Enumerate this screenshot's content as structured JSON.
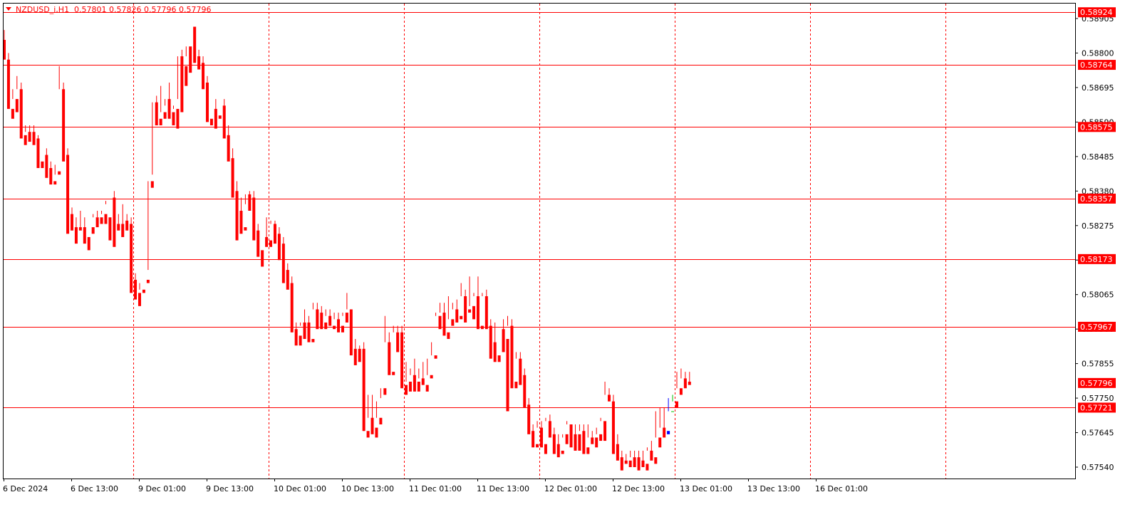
{
  "header": {
    "symbol_label": "NZDUSD_i,H1",
    "ohlc_values": "0.57801 0.57826 0.57796 0.57796"
  },
  "colors": {
    "background": "#ffffff",
    "frame": "#000000",
    "bull": "#0000ff",
    "bear": "#ff0000",
    "doji": "#00c000",
    "level_line": "#ff0000",
    "separator": "#ff0000",
    "label_bg": "#ff0000",
    "label_text": "#ffffff",
    "axis_text": "#000000"
  },
  "chart_data": {
    "type": "candlestick",
    "title": "NZDUSD_i,H1",
    "ylim": [
      0.5749,
      0.5898
    ],
    "y_ticks": [
      "0.58905",
      "0.58800",
      "0.58695",
      "0.58590",
      "0.58485",
      "0.58380",
      "0.58275",
      "0.58170",
      "0.58065",
      "0.57960",
      "0.57855",
      "0.57750",
      "0.57645",
      "0.57540"
    ],
    "x_ticks": [
      "6 Dec 2024",
      "6 Dec 13:00",
      "9 Dec 01:00",
      "9 Dec 13:00",
      "10 Dec 01:00",
      "10 Dec 13:00",
      "11 Dec 01:00",
      "11 Dec 13:00",
      "12 Dec 01:00",
      "12 Dec 13:00",
      "13 Dec 01:00",
      "13 Dec 13:00",
      "16 Dec 01:00"
    ],
    "period_separators": [
      "9 Dec 01:00",
      "10 Dec 01:00",
      "11 Dec 01:00",
      "12 Dec 01:00",
      "13 Dec 01:00",
      "16 Dec 01:00"
    ],
    "horizontal_levels": [
      "0.58924",
      "0.58764",
      "0.58575",
      "0.58357",
      "0.58173",
      "0.57967",
      "0.57721"
    ],
    "current_price": "0.57796",
    "candles": [
      [
        0.5884,
        0.5887,
        0.5879,
        0.5878
      ],
      [
        0.5878,
        0.588,
        0.5871,
        0.5863
      ],
      [
        0.5863,
        0.5869,
        0.5866,
        0.586
      ],
      [
        0.5866,
        0.5873,
        0.5869,
        0.5862
      ],
      [
        0.5869,
        0.5871,
        0.5855,
        0.5854
      ],
      [
        0.5855,
        0.5858,
        0.5856,
        0.5852
      ],
      [
        0.5856,
        0.5858,
        0.5855,
        0.5853
      ],
      [
        0.5856,
        0.5858,
        0.5854,
        0.5852
      ],
      [
        0.5854,
        0.5855,
        0.5847,
        0.5845
      ],
      [
        0.5847,
        0.5849,
        0.5849,
        0.5845
      ],
      [
        0.5849,
        0.5851,
        0.5845,
        0.5842
      ],
      [
        0.5845,
        0.5847,
        0.5841,
        0.584
      ],
      [
        0.5841,
        0.5843,
        0.5846,
        0.584
      ],
      [
        0.5844,
        0.5876,
        0.5869,
        0.5843
      ],
      [
        0.5869,
        0.5871,
        0.5849,
        0.5847
      ],
      [
        0.5849,
        0.5851,
        0.5831,
        0.5825
      ],
      [
        0.5831,
        0.5833,
        0.5827,
        0.5826
      ],
      [
        0.5827,
        0.583,
        0.5824,
        0.5822
      ],
      [
        0.5827,
        0.5832,
        0.5827,
        0.5826
      ],
      [
        0.5827,
        0.583,
        0.5824,
        0.5822
      ],
      [
        0.5824,
        0.5827,
        0.5827,
        0.582
      ],
      [
        0.5827,
        0.5831,
        0.583,
        0.5825
      ],
      [
        0.583,
        0.5832,
        0.583,
        0.5827
      ],
      [
        0.583,
        0.5832,
        0.5831,
        0.5828
      ],
      [
        0.5831,
        0.5834,
        0.5835,
        0.5828
      ],
      [
        0.583,
        0.5836,
        0.5836,
        0.5823
      ],
      [
        0.5836,
        0.5838,
        0.5828,
        0.5821
      ],
      [
        0.5828,
        0.5831,
        0.5828,
        0.5826
      ],
      [
        0.5828,
        0.5834,
        0.5828,
        0.5824
      ],
      [
        0.5829,
        0.5831,
        0.5828,
        0.5826
      ],
      [
        0.5828,
        0.583,
        0.5811,
        0.5807
      ],
      [
        0.5811,
        0.5813,
        0.5807,
        0.5805
      ],
      [
        0.5807,
        0.581,
        0.5808,
        0.5803
      ],
      [
        0.5808,
        0.5811,
        0.5811,
        0.5807
      ],
      [
        0.5811,
        0.5814,
        0.5841,
        0.581
      ],
      [
        0.5841,
        0.5843,
        0.5865,
        0.5839
      ],
      [
        0.5865,
        0.5867,
        0.586,
        0.5858
      ],
      [
        0.586,
        0.587,
        0.5862,
        0.5858
      ],
      [
        0.5862,
        0.5864,
        0.5866,
        0.586
      ],
      [
        0.5866,
        0.5871,
        0.5862,
        0.586
      ],
      [
        0.5862,
        0.5864,
        0.5863,
        0.5858
      ],
      [
        0.5863,
        0.5866,
        0.5879,
        0.5857
      ],
      [
        0.5879,
        0.5881,
        0.5876,
        0.5862
      ],
      [
        0.5876,
        0.5879,
        0.5882,
        0.587
      ],
      [
        0.5882,
        0.5888,
        0.5888,
        0.5874
      ],
      [
        0.5888,
        0.5887,
        0.5879,
        0.5877
      ],
      [
        0.5879,
        0.5881,
        0.5877,
        0.5875
      ],
      [
        0.5877,
        0.5879,
        0.5871,
        0.5869
      ],
      [
        0.5871,
        0.5873,
        0.586,
        0.5859
      ],
      [
        0.586,
        0.5863,
        0.5863,
        0.5858
      ],
      [
        0.5863,
        0.5866,
        0.5861,
        0.5857
      ],
      [
        0.5861,
        0.5864,
        0.5864,
        0.586
      ],
      [
        0.5864,
        0.5866,
        0.5855,
        0.5854
      ],
      [
        0.5855,
        0.5858,
        0.5848,
        0.5847
      ],
      [
        0.5848,
        0.5851,
        0.5838,
        0.5836
      ],
      [
        0.5838,
        0.5841,
        0.5832,
        0.5823
      ],
      [
        0.5832,
        0.5836,
        0.5827,
        0.5825
      ],
      [
        0.5827,
        0.5834,
        0.5837,
        0.5826
      ],
      [
        0.5837,
        0.5838,
        0.5836,
        0.5832
      ],
      [
        0.5836,
        0.5838,
        0.5826,
        0.5823
      ],
      [
        0.5826,
        0.5828,
        0.582,
        0.5818
      ],
      [
        0.582,
        0.5824,
        0.5824,
        0.5815
      ],
      [
        0.5824,
        0.583,
        0.5823,
        0.5821
      ],
      [
        0.5823,
        0.5829,
        0.5828,
        0.5821
      ],
      [
        0.5828,
        0.5829,
        0.5825,
        0.5822
      ],
      [
        0.5825,
        0.5827,
        0.5822,
        0.5817
      ],
      [
        0.5822,
        0.5824,
        0.5814,
        0.581
      ],
      [
        0.5814,
        0.5816,
        0.581,
        0.5808
      ],
      [
        0.581,
        0.5812,
        0.5796,
        0.5795
      ],
      [
        0.5796,
        0.5798,
        0.5794,
        0.5791
      ],
      [
        0.5794,
        0.5797,
        0.5798,
        0.5791
      ],
      [
        0.5798,
        0.5802,
        0.5798,
        0.5793
      ],
      [
        0.5798,
        0.58,
        0.5793,
        0.5792
      ],
      [
        0.5793,
        0.5804,
        0.5802,
        0.5792
      ],
      [
        0.5802,
        0.5804,
        0.5801,
        0.5796
      ],
      [
        0.5801,
        0.5803,
        0.5798,
        0.5796
      ],
      [
        0.5798,
        0.5802,
        0.58,
        0.5796
      ],
      [
        0.58,
        0.5802,
        0.5797,
        0.5797
      ],
      [
        0.5797,
        0.5801,
        0.5799,
        0.5796
      ],
      [
        0.5799,
        0.5801,
        0.5797,
        0.5795
      ],
      [
        0.5797,
        0.58,
        0.5801,
        0.5795
      ],
      [
        0.5801,
        0.5807,
        0.5802,
        0.5798
      ],
      [
        0.5802,
        0.5802,
        0.579,
        0.5788
      ],
      [
        0.579,
        0.5793,
        0.579,
        0.5785
      ],
      [
        0.579,
        0.5791,
        0.579,
        0.5786
      ],
      [
        0.579,
        0.5792,
        0.5765,
        0.5765
      ],
      [
        0.5765,
        0.5776,
        0.5769,
        0.5763
      ],
      [
        0.5769,
        0.5776,
        0.5766,
        0.5764
      ],
      [
        0.5766,
        0.5774,
        0.5769,
        0.5763
      ],
      [
        0.5769,
        0.5775,
        0.5778,
        0.5767
      ],
      [
        0.5778,
        0.58,
        0.5792,
        0.5776
      ],
      [
        0.5792,
        0.5795,
        0.5783,
        0.5782
      ],
      [
        0.5783,
        0.5797,
        0.5795,
        0.5782
      ],
      [
        0.5795,
        0.5797,
        0.5795,
        0.5789
      ],
      [
        0.5795,
        0.5797,
        0.5779,
        0.5778
      ],
      [
        0.5779,
        0.5786,
        0.578,
        0.5776
      ],
      [
        0.578,
        0.5784,
        0.5782,
        0.5777
      ],
      [
        0.5782,
        0.5787,
        0.578,
        0.5777
      ],
      [
        0.578,
        0.5784,
        0.5781,
        0.5777
      ],
      [
        0.5781,
        0.5786,
        0.5779,
        0.5779
      ],
      [
        0.5779,
        0.5787,
        0.5782,
        0.5777
      ],
      [
        0.5782,
        0.5792,
        0.5788,
        0.5781
      ],
      [
        0.5788,
        0.5801,
        0.58,
        0.5787
      ],
      [
        0.58,
        0.5804,
        0.5801,
        0.5796
      ],
      [
        0.5801,
        0.5804,
        0.5795,
        0.5794
      ],
      [
        0.5795,
        0.5806,
        0.5799,
        0.5793
      ],
      [
        0.5799,
        0.5804,
        0.5802,
        0.5797
      ],
      [
        0.5802,
        0.5805,
        0.58,
        0.5798
      ],
      [
        0.58,
        0.581,
        0.5806,
        0.5799
      ],
      [
        0.5806,
        0.5808,
        0.5802,
        0.5798
      ],
      [
        0.5802,
        0.5812,
        0.5803,
        0.5801
      ],
      [
        0.5803,
        0.5807,
        0.5806,
        0.5799
      ],
      [
        0.5806,
        0.5812,
        0.5797,
        0.5796
      ],
      [
        0.5797,
        0.5807,
        0.5806,
        0.5796
      ],
      [
        0.5806,
        0.5808,
        0.5797,
        0.5796
      ],
      [
        0.5797,
        0.5799,
        0.5792,
        0.5787
      ],
      [
        0.5792,
        0.5798,
        0.5788,
        0.5786
      ],
      [
        0.5788,
        0.5796,
        0.5796,
        0.5786
      ],
      [
        0.5796,
        0.5799,
        0.5793,
        0.5789
      ],
      [
        0.5793,
        0.58,
        0.5797,
        0.5771
      ],
      [
        0.5797,
        0.5799,
        0.578,
        0.5778
      ],
      [
        0.578,
        0.5789,
        0.5787,
        0.5778
      ],
      [
        0.5787,
        0.5789,
        0.5782,
        0.5779
      ],
      [
        0.5782,
        0.5784,
        0.5773,
        0.5772
      ],
      [
        0.5773,
        0.5775,
        0.5765,
        0.5764
      ],
      [
        0.5765,
        0.5767,
        0.5761,
        0.576
      ],
      [
        0.5761,
        0.5768,
        0.5766,
        0.576
      ],
      [
        0.5766,
        0.5768,
        0.5761,
        0.576
      ],
      [
        0.5761,
        0.5769,
        0.5768,
        0.5758
      ],
      [
        0.5768,
        0.577,
        0.5764,
        0.5763
      ],
      [
        0.5764,
        0.5766,
        0.5761,
        0.5758
      ],
      [
        0.5761,
        0.5764,
        0.5759,
        0.5757
      ],
      [
        0.5759,
        0.5763,
        0.5764,
        0.5758
      ],
      [
        0.5764,
        0.5768,
        0.5767,
        0.5761
      ],
      [
        0.5767,
        0.5767,
        0.5764,
        0.576
      ],
      [
        0.5764,
        0.5767,
        0.5764,
        0.5759
      ],
      [
        0.5764,
        0.5767,
        0.5765,
        0.5759
      ],
      [
        0.5765,
        0.5767,
        0.576,
        0.5758
      ],
      [
        0.576,
        0.5767,
        0.5763,
        0.5758
      ],
      [
        0.5763,
        0.5765,
        0.5763,
        0.5761
      ],
      [
        0.5763,
        0.5766,
        0.5764,
        0.576
      ],
      [
        0.5764,
        0.5769,
        0.5768,
        0.5762
      ],
      [
        0.5768,
        0.578,
        0.5776,
        0.5762
      ],
      [
        0.5776,
        0.5778,
        0.5774,
        0.5774
      ],
      [
        0.5774,
        0.5776,
        0.5761,
        0.5758
      ],
      [
        0.5761,
        0.5764,
        0.5757,
        0.5756
      ],
      [
        0.5757,
        0.5759,
        0.5756,
        0.5753
      ],
      [
        0.5756,
        0.5758,
        0.5756,
        0.5755
      ],
      [
        0.5756,
        0.5759,
        0.5757,
        0.5754
      ],
      [
        0.5757,
        0.5759,
        0.5757,
        0.5754
      ],
      [
        0.5757,
        0.5759,
        0.5756,
        0.5753
      ],
      [
        0.5756,
        0.5759,
        0.5755,
        0.5754
      ],
      [
        0.5755,
        0.576,
        0.5759,
        0.5753
      ],
      [
        0.5759,
        0.5762,
        0.5757,
        0.5756
      ],
      [
        0.5757,
        0.5771,
        0.5763,
        0.5755
      ],
      [
        0.5763,
        0.5772,
        0.5766,
        0.576
      ],
      [
        0.5766,
        0.5772,
        0.5764,
        0.5763
      ],
      [
        0.5764,
        0.5775,
        0.5771,
        0.5765
      ],
      [
        0.5771,
        0.5776,
        0.5774,
        0.5771
      ],
      [
        0.5774,
        0.5783,
        0.5778,
        0.5772
      ],
      [
        0.5778,
        0.5784,
        0.5781,
        0.5776
      ],
      [
        0.5781,
        0.5783,
        0.5781,
        0.5778
      ],
      [
        0.578,
        0.5783,
        0.578,
        0.5779
      ]
    ]
  }
}
